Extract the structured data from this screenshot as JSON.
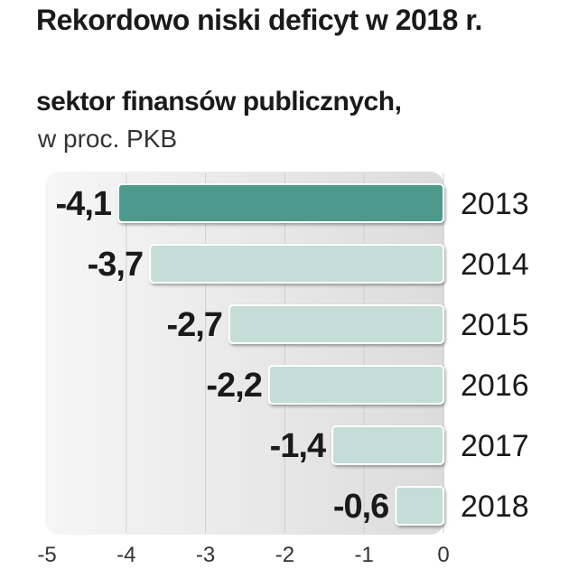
{
  "header": {
    "title": "Rekordowo niski deficyt w 2018 r.",
    "subtitle": "sektor finansów publicznych,",
    "unit": "w proc. PKB"
  },
  "colors": {
    "highlight_bar": "#4e9a8c",
    "bar": "#c4ddd6",
    "panel_gradient_start": "#f6f6f6",
    "panel_gradient_end": "#dcdcdc",
    "grid": "#d0d0d0"
  },
  "chart_data": {
    "type": "bar",
    "orientation": "horizontal",
    "title": "Rekordowo niski deficyt w 2018 r.",
    "subtitle": "sektor finansów publicznych, w proc. PKB",
    "categories": [
      "2013",
      "2014",
      "2015",
      "2016",
      "2017",
      "2018"
    ],
    "values": [
      -4.1,
      -3.7,
      -2.7,
      -2.2,
      -1.4,
      -0.6
    ],
    "value_labels": [
      "-4,1",
      "-3,7",
      "-2,7",
      "-2,2",
      "-1,4",
      "-0,6"
    ],
    "highlighted_category": "2013",
    "xlim": [
      -5,
      0
    ],
    "xticks": [
      -5,
      -4,
      -3,
      -2,
      -1,
      0
    ],
    "xtick_labels": [
      "-5",
      "-4",
      "-3",
      "-2",
      "-1",
      "0"
    ],
    "grid": true,
    "legend": false
  }
}
